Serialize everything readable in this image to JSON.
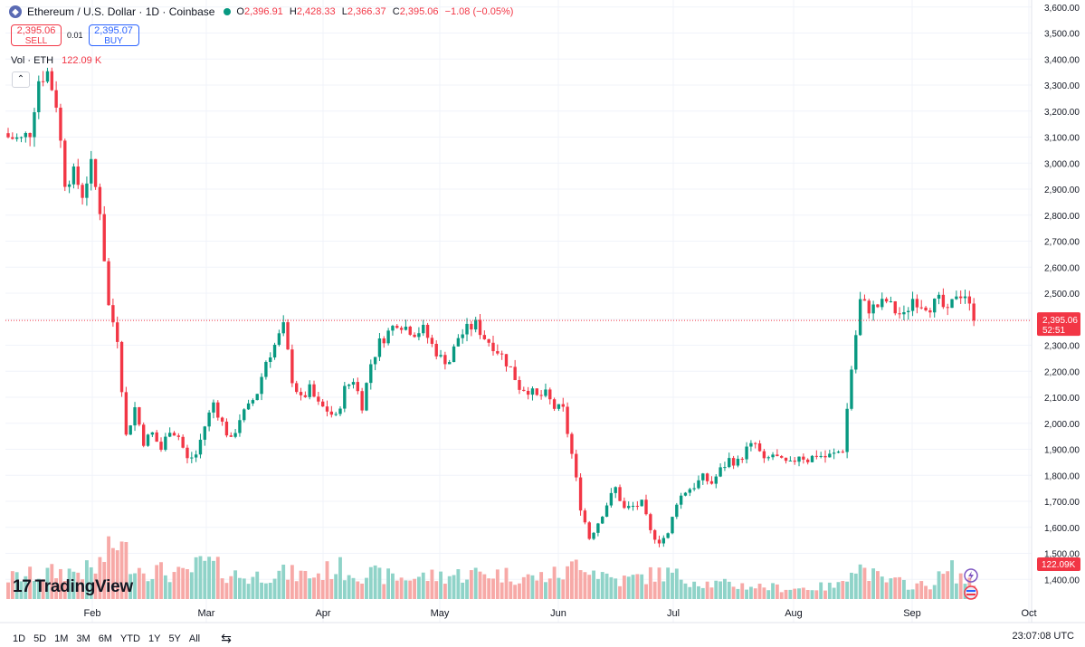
{
  "header": {
    "symbol_title": "Ethereum / U.S. Dollar · 1D · Coinbase",
    "symbol_icon": "ethereum-icon",
    "ohlc": {
      "o_label": "O",
      "o": "2,396.91",
      "h_label": "H",
      "h": "2,428.33",
      "l_label": "L",
      "l": "2,366.37",
      "c_label": "C",
      "c": "2,395.06",
      "change": "−1.08 (−0.05%)"
    }
  },
  "trade": {
    "sell_price": "2,395.06",
    "sell_label": "SELL",
    "spread": "0.01",
    "buy_price": "2,395.07",
    "buy_label": "BUY"
  },
  "volume_legend": {
    "label": "Vol · ETH",
    "value": "122.09 K"
  },
  "logo_text": "TradingView",
  "toolbar": {
    "ranges": [
      "1D",
      "5D",
      "1M",
      "3M",
      "6M",
      "YTD",
      "1Y",
      "5Y",
      "All"
    ]
  },
  "clock": "23:07:08 UTC",
  "colors": {
    "up": "#089981",
    "down": "#f23645",
    "vol_up": "#8fd3c8",
    "vol_down": "#f7a9a7"
  },
  "chart_data": {
    "type": "candlestick",
    "y_axis_side": "right",
    "ylim": [
      1380,
      3620
    ],
    "y_ticks": [
      "1,400.00",
      "1,500.00",
      "1,600.00",
      "1,700.00",
      "1,800.00",
      "1,900.00",
      "2,000.00",
      "2,100.00",
      "2,200.00",
      "2,300.00",
      "2,400.00",
      "2,500.00",
      "2,600.00",
      "2,700.00",
      "2,800.00",
      "2,900.00",
      "3,000.00",
      "3,100.00",
      "3,200.00",
      "3,300.00",
      "3,400.00",
      "3,500.00",
      "3,600.00"
    ],
    "x_ticks": [
      "Feb",
      "Mar",
      "Apr",
      "May",
      "Jun",
      "Jul",
      "Aug",
      "Sep",
      "Oct"
    ],
    "last_price_label": "2,395.06",
    "last_price": 2395.06,
    "countdown": "52:51",
    "volume_label": "122.09K",
    "grid": true,
    "close_waypoints": [
      [
        0,
        3100
      ],
      [
        3,
        3090
      ],
      [
        5,
        3120
      ],
      [
        7,
        3320
      ],
      [
        9,
        3350
      ],
      [
        11,
        3230
      ],
      [
        13,
        2930
      ],
      [
        15,
        2960
      ],
      [
        17,
        2880
      ],
      [
        19,
        2990
      ],
      [
        21,
        2820
      ],
      [
        23,
        2450
      ],
      [
        25,
        2330
      ],
      [
        27,
        1950
      ],
      [
        29,
        2060
      ],
      [
        31,
        1930
      ],
      [
        33,
        1960
      ],
      [
        35,
        1900
      ],
      [
        37,
        1980
      ],
      [
        39,
        1950
      ],
      [
        41,
        1860
      ],
      [
        43,
        1880
      ],
      [
        45,
        1990
      ],
      [
        47,
        2080
      ],
      [
        49,
        2000
      ],
      [
        51,
        1930
      ],
      [
        53,
        2020
      ],
      [
        55,
        2060
      ],
      [
        57,
        2120
      ],
      [
        59,
        2240
      ],
      [
        61,
        2300
      ],
      [
        63,
        2370
      ],
      [
        65,
        2170
      ],
      [
        67,
        2090
      ],
      [
        69,
        2130
      ],
      [
        71,
        2070
      ],
      [
        73,
        2050
      ],
      [
        75,
        2020
      ],
      [
        77,
        2130
      ],
      [
        79,
        2170
      ],
      [
        81,
        2070
      ],
      [
        83,
        2230
      ],
      [
        85,
        2310
      ],
      [
        87,
        2350
      ],
      [
        89,
        2390
      ],
      [
        91,
        2370
      ],
      [
        93,
        2350
      ],
      [
        95,
        2360
      ],
      [
        97,
        2300
      ],
      [
        99,
        2250
      ],
      [
        101,
        2240
      ],
      [
        103,
        2330
      ],
      [
        105,
        2360
      ],
      [
        107,
        2380
      ],
      [
        109,
        2330
      ],
      [
        111,
        2300
      ],
      [
        113,
        2260
      ],
      [
        115,
        2210
      ],
      [
        117,
        2140
      ],
      [
        119,
        2130
      ],
      [
        121,
        2100
      ],
      [
        123,
        2110
      ],
      [
        125,
        2060
      ],
      [
        127,
        2050
      ],
      [
        129,
        1880
      ],
      [
        131,
        1680
      ],
      [
        133,
        1560
      ],
      [
        135,
        1620
      ],
      [
        137,
        1690
      ],
      [
        139,
        1750
      ],
      [
        141,
        1670
      ],
      [
        143,
        1680
      ],
      [
        145,
        1690
      ],
      [
        147,
        1580
      ],
      [
        149,
        1550
      ],
      [
        151,
        1570
      ],
      [
        153,
        1700
      ],
      [
        155,
        1740
      ],
      [
        157,
        1760
      ],
      [
        159,
        1790
      ],
      [
        161,
        1770
      ],
      [
        163,
        1820
      ],
      [
        165,
        1860
      ],
      [
        167,
        1850
      ],
      [
        169,
        1900
      ],
      [
        171,
        1920
      ],
      [
        173,
        1850
      ],
      [
        175,
        1880
      ],
      [
        177,
        1850
      ],
      [
        179,
        1840
      ],
      [
        181,
        1880
      ],
      [
        183,
        1860
      ],
      [
        185,
        1880
      ],
      [
        187,
        1870
      ],
      [
        189,
        1880
      ],
      [
        191,
        1900
      ],
      [
        193,
        2210
      ],
      [
        195,
        2470
      ],
      [
        197,
        2440
      ],
      [
        199,
        2450
      ],
      [
        201,
        2470
      ],
      [
        203,
        2430
      ],
      [
        205,
        2410
      ],
      [
        207,
        2480
      ],
      [
        209,
        2460
      ],
      [
        211,
        2450
      ],
      [
        213,
        2470
      ],
      [
        215,
        2420
      ],
      [
        217,
        2500
      ],
      [
        219,
        2495
      ],
      [
        221,
        2395
      ]
    ],
    "volume_waypoints": [
      [
        0,
        0.4
      ],
      [
        10,
        0.5
      ],
      [
        20,
        0.55
      ],
      [
        22,
        0.8
      ],
      [
        24,
        1.0
      ],
      [
        25,
        1.15
      ],
      [
        26,
        0.95
      ],
      [
        30,
        0.6
      ],
      [
        40,
        0.45
      ],
      [
        45,
        0.7
      ],
      [
        50,
        0.5
      ],
      [
        55,
        0.4
      ],
      [
        60,
        0.5
      ],
      [
        70,
        0.45
      ],
      [
        75,
        0.6
      ],
      [
        80,
        0.5
      ],
      [
        90,
        0.4
      ],
      [
        100,
        0.45
      ],
      [
        110,
        0.5
      ],
      [
        120,
        0.4
      ],
      [
        128,
        0.5
      ],
      [
        131,
        0.8
      ],
      [
        134,
        0.55
      ],
      [
        140,
        0.35
      ],
      [
        150,
        0.5
      ],
      [
        160,
        0.3
      ],
      [
        170,
        0.25
      ],
      [
        180,
        0.2
      ],
      [
        190,
        0.25
      ],
      [
        193,
        0.7
      ],
      [
        195,
        0.6
      ],
      [
        200,
        0.35
      ],
      [
        210,
        0.25
      ],
      [
        216,
        0.55
      ],
      [
        220,
        0.3
      ],
      [
        221,
        0.33
      ]
    ]
  }
}
